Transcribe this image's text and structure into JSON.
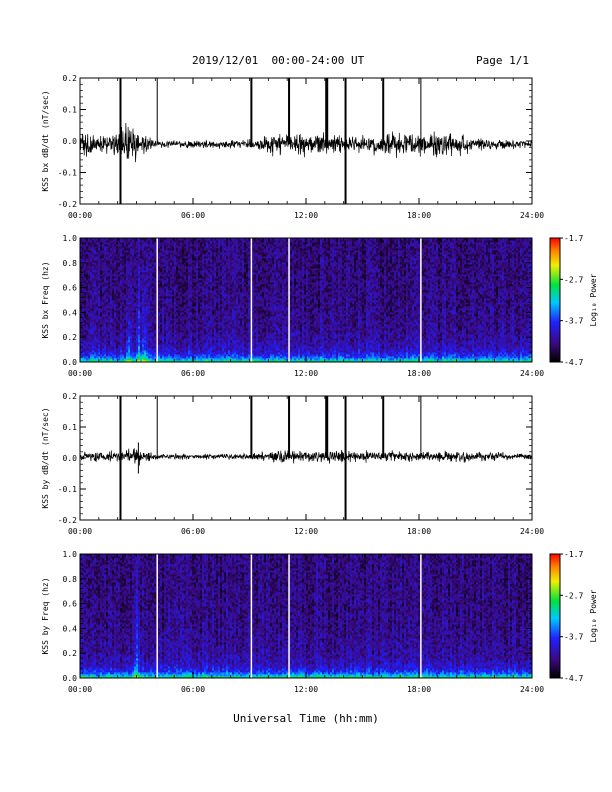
{
  "header": {
    "title": "2019/12/01  00:00-24:00 UT",
    "page": "Page 1/1"
  },
  "xlabel": "Universal Time (hh:mm)",
  "chart_data": [
    {
      "type": "line",
      "ylabel": "KSS bx dB/dt (nT/sec)",
      "xlim": [
        0,
        24
      ],
      "ylim": [
        -0.2,
        0.2
      ],
      "x_ticks": [
        "00:00",
        "06:00",
        "12:00",
        "18:00",
        "24:00"
      ],
      "y_ticks": [
        "-0.2",
        "-0.1",
        "0.0",
        "0.1",
        "0.2"
      ],
      "baseline": -0.01,
      "envelope": [
        {
          "x": 0,
          "amp": 0.025
        },
        {
          "x": 1.5,
          "amp": 0.02
        },
        {
          "x": 2.5,
          "amp": 0.04
        },
        {
          "x": 3.2,
          "amp": 0.03
        },
        {
          "x": 4,
          "amp": 0.008
        },
        {
          "x": 6,
          "amp": 0.008
        },
        {
          "x": 9,
          "amp": 0.01
        },
        {
          "x": 10,
          "amp": 0.02
        },
        {
          "x": 12,
          "amp": 0.025
        },
        {
          "x": 15,
          "amp": 0.02
        },
        {
          "x": 17,
          "amp": 0.025
        },
        {
          "x": 20,
          "amp": 0.03
        },
        {
          "x": 21,
          "amp": 0.015
        },
        {
          "x": 24,
          "amp": 0.008
        }
      ],
      "spikes": [
        {
          "x": 2.15,
          "ymin": -0.2,
          "ymax": 0.2,
          "w": 2
        },
        {
          "x": 4.1,
          "ymin": -0.01,
          "ymax": 0.2,
          "w": 1
        },
        {
          "x": 9.1,
          "ymin": -0.02,
          "ymax": 0.2,
          "w": 2
        },
        {
          "x": 11.1,
          "ymin": -0.01,
          "ymax": 0.2,
          "w": 2
        },
        {
          "x": 13.1,
          "ymin": -0.01,
          "ymax": 0.2,
          "w": 3
        },
        {
          "x": 14.1,
          "ymin": -0.2,
          "ymax": 0.2,
          "w": 2
        },
        {
          "x": 16.1,
          "ymin": -0.01,
          "ymax": 0.2,
          "w": 2
        },
        {
          "x": 18.1,
          "ymin": -0.01,
          "ymax": 0.2,
          "w": 1
        }
      ]
    },
    {
      "type": "heatmap",
      "ylabel": "KSS bx Freq (hz)",
      "colorbar_label": "Log₁₀ Power",
      "xlim": [
        0,
        24
      ],
      "ylim": [
        0,
        1
      ],
      "x_ticks": [
        "00:00",
        "06:00",
        "12:00",
        "18:00",
        "24:00"
      ],
      "y_ticks": [
        "0.0",
        "0.2",
        "0.4",
        "0.6",
        "0.8",
        "1.0"
      ],
      "colorbar_ticks": [
        "-1.7",
        "-2.7",
        "-3.7",
        "-4.7"
      ],
      "crange": [
        -4.7,
        -1.7
      ],
      "gaps": [
        4.1,
        9.1,
        11.1,
        18.1
      ],
      "events": [
        2.6,
        3.1,
        3.4
      ]
    },
    {
      "type": "line",
      "ylabel": "KSS by dB/dt (nT/sec)",
      "xlim": [
        0,
        24
      ],
      "ylim": [
        -0.2,
        0.2
      ],
      "x_ticks": [
        "00:00",
        "06:00",
        "12:00",
        "18:00",
        "24:00"
      ],
      "y_ticks": [
        "-0.2",
        "-0.1",
        "0.0",
        "0.1",
        "0.2"
      ],
      "baseline": 0.005,
      "envelope": [
        {
          "x": 0,
          "amp": 0.01
        },
        {
          "x": 2,
          "amp": 0.012
        },
        {
          "x": 3,
          "amp": 0.02
        },
        {
          "x": 4,
          "amp": 0.006
        },
        {
          "x": 9,
          "amp": 0.006
        },
        {
          "x": 10,
          "amp": 0.012
        },
        {
          "x": 12,
          "amp": 0.015
        },
        {
          "x": 15,
          "amp": 0.012
        },
        {
          "x": 18,
          "amp": 0.01
        },
        {
          "x": 21,
          "amp": 0.012
        },
        {
          "x": 24,
          "amp": 0.006
        }
      ],
      "spikes": [
        {
          "x": 2.15,
          "ymin": -0.2,
          "ymax": 0.2,
          "w": 2
        },
        {
          "x": 3.1,
          "ymin": -0.05,
          "ymax": 0.05,
          "w": 1
        },
        {
          "x": 4.1,
          "ymin": 0.0,
          "ymax": 0.2,
          "w": 1
        },
        {
          "x": 9.1,
          "ymin": 0.0,
          "ymax": 0.2,
          "w": 2
        },
        {
          "x": 11.1,
          "ymin": 0.0,
          "ymax": 0.2,
          "w": 2
        },
        {
          "x": 13.1,
          "ymin": 0.0,
          "ymax": 0.2,
          "w": 3
        },
        {
          "x": 14.1,
          "ymin": -0.2,
          "ymax": 0.2,
          "w": 2
        },
        {
          "x": 16.1,
          "ymin": 0.0,
          "ymax": 0.2,
          "w": 2
        },
        {
          "x": 18.1,
          "ymin": 0.0,
          "ymax": 0.2,
          "w": 1
        }
      ]
    },
    {
      "type": "heatmap",
      "ylabel": "KSS by Freq (hz)",
      "colorbar_label": "Log₁₀ Power",
      "xlim": [
        0,
        24
      ],
      "ylim": [
        0,
        1
      ],
      "x_ticks": [
        "00:00",
        "06:00",
        "12:00",
        "18:00",
        "24:00"
      ],
      "y_ticks": [
        "0.0",
        "0.2",
        "0.4",
        "0.6",
        "0.8",
        "1.0"
      ],
      "colorbar_ticks": [
        "-1.7",
        "-2.7",
        "-3.7",
        "-4.7"
      ],
      "crange": [
        -4.7,
        -1.7
      ],
      "gaps": [
        4.1,
        9.1,
        11.1,
        18.1
      ],
      "events": [
        3.0
      ]
    }
  ]
}
